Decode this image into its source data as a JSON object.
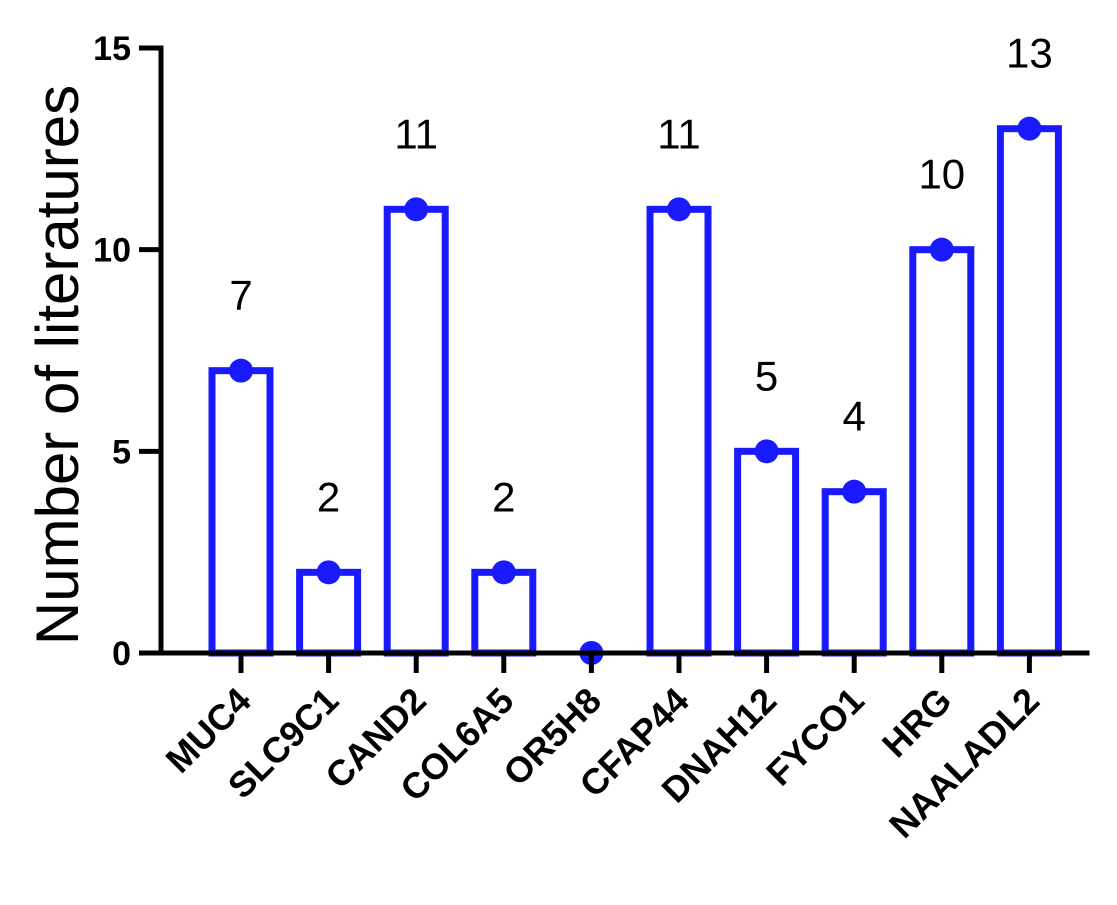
{
  "chart_data": {
    "type": "bar",
    "categories": [
      "MUC4",
      "SLC9C1",
      "CAND2",
      "COL6A5",
      "OR5H8",
      "CFAP44",
      "DNAH12",
      "FYCO1",
      "HRG",
      "NAALADL2"
    ],
    "values": [
      7,
      2,
      11,
      2,
      0,
      11,
      5,
      4,
      10,
      13
    ],
    "data_labels": [
      "7",
      "2",
      "11",
      "2",
      "",
      "11",
      "5",
      "4",
      "10",
      "13"
    ],
    "title": "",
    "xlabel": "",
    "ylabel": "Number of literatures",
    "ylim": [
      0,
      15
    ],
    "yticks": [
      0,
      5,
      10,
      15
    ],
    "ytick_labels": [
      "0",
      "5",
      "10",
      "15"
    ],
    "grid": false,
    "legend": "none",
    "bar_fill": "#ffffff",
    "bar_edge_color": "#1a1aff",
    "marker_color": "#1a1aff",
    "marker": "circle"
  }
}
